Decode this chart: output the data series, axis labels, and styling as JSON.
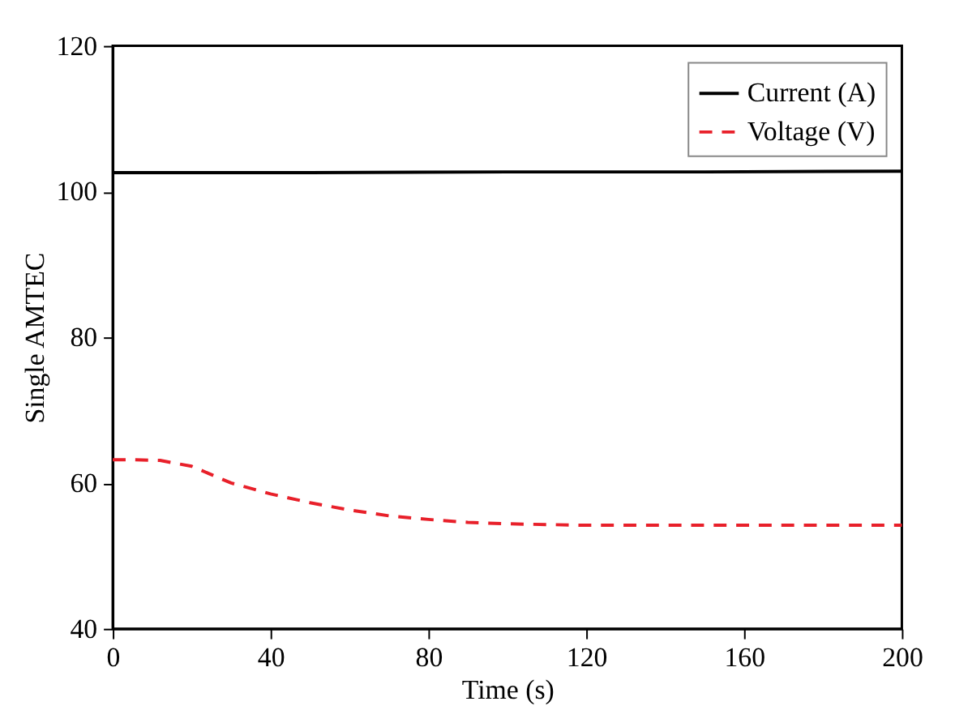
{
  "chart_data": {
    "type": "line",
    "xlabel": "Time (s)",
    "ylabel": "Single AMTEC",
    "xlim": [
      0,
      200
    ],
    "xticks": [
      0,
      40,
      80,
      120,
      160,
      200
    ],
    "ylim": [
      40,
      120
    ],
    "yticks": [
      40,
      60,
      80,
      100,
      120
    ],
    "legend": "top right",
    "grid": false,
    "series": [
      {
        "name": "Current (A)",
        "color": "#000000",
        "line_style": "solid",
        "x": [
          0,
          50,
          100,
          150,
          200
        ],
        "values": [
          102.6,
          102.6,
          102.7,
          102.7,
          102.8
        ]
      },
      {
        "name": "Voltage (V)",
        "color": "#e8202a",
        "line_style": "dashed",
        "x": [
          0,
          5,
          12,
          20,
          30,
          40,
          50,
          60,
          70,
          80,
          90,
          100,
          120,
          140,
          160,
          180,
          200
        ],
        "values": [
          63.2,
          63.2,
          63.1,
          62.3,
          60.0,
          58.5,
          57.3,
          56.3,
          55.5,
          55.0,
          54.6,
          54.4,
          54.2,
          54.2,
          54.2,
          54.2,
          54.2
        ]
      }
    ]
  }
}
